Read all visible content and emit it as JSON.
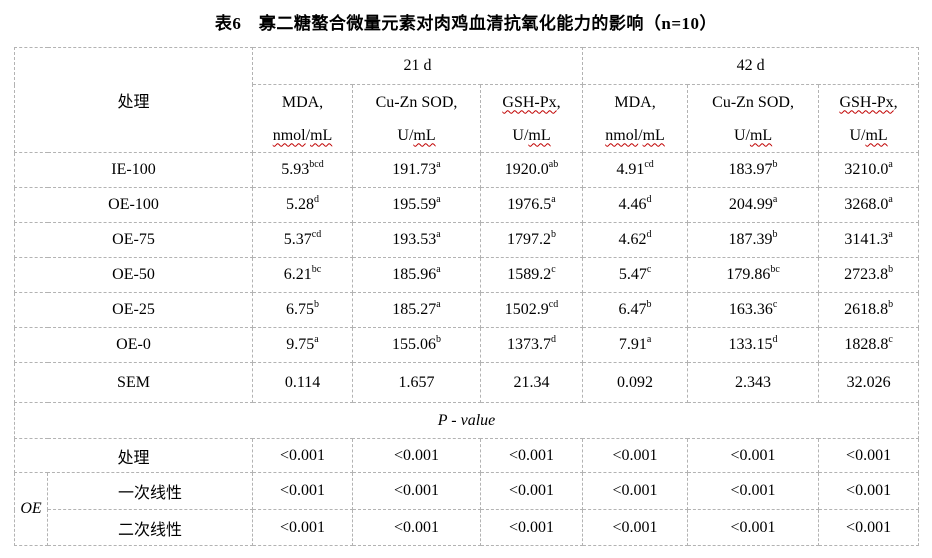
{
  "title": "表6　寡二糖螯合微量元素对肉鸡血清抗氧化能力的影响（n=10）",
  "colors": {
    "spellcheck_underline": "#c00000",
    "grid_line": "#b3b3b3",
    "solid_border": "#000000",
    "text": "#000000",
    "background": "#ffffff"
  },
  "table": {
    "corner_label": "处理",
    "group_headers": [
      "21 d",
      "42 d"
    ],
    "unit_columns": [
      {
        "line1": [
          [
            "MDA,",
            false
          ]
        ],
        "line2": [
          [
            "nmol",
            true
          ],
          [
            "/",
            false
          ],
          [
            "mL",
            true
          ]
        ]
      },
      {
        "line1": [
          [
            "Cu-Zn SOD,",
            false
          ]
        ],
        "line2": [
          [
            "U/",
            false
          ],
          [
            "mL",
            true
          ]
        ]
      },
      {
        "line1": [
          [
            "GSH-Px",
            true
          ],
          [
            ",",
            false
          ]
        ],
        "line2": [
          [
            "U/",
            false
          ],
          [
            "mL",
            true
          ]
        ]
      },
      {
        "line1": [
          [
            "MDA,",
            false
          ]
        ],
        "line2": [
          [
            "nmol",
            true
          ],
          [
            "/",
            false
          ],
          [
            "mL",
            true
          ]
        ]
      },
      {
        "line1": [
          [
            "Cu-Zn SOD,",
            false
          ]
        ],
        "line2": [
          [
            "U/",
            false
          ],
          [
            "mL",
            true
          ]
        ]
      },
      {
        "line1": [
          [
            "GSH-Px",
            true
          ],
          [
            ",",
            false
          ]
        ],
        "line2": [
          [
            "U/",
            false
          ],
          [
            "mL",
            true
          ]
        ]
      }
    ],
    "rows": [
      {
        "label": "IE-100",
        "cells": [
          {
            "v": "5.93",
            "sup": "bcd"
          },
          {
            "v": "191.73",
            "sup": "a"
          },
          {
            "v": "1920.0",
            "sup": "ab"
          },
          {
            "v": "4.91",
            "sup": "cd"
          },
          {
            "v": "183.97",
            "sup": "b"
          },
          {
            "v": "3210.0",
            "sup": "a"
          }
        ]
      },
      {
        "label": "OE-100",
        "cells": [
          {
            "v": "5.28",
            "sup": "d"
          },
          {
            "v": "195.59",
            "sup": "a"
          },
          {
            "v": "1976.5",
            "sup": "a"
          },
          {
            "v": "4.46",
            "sup": "d"
          },
          {
            "v": "204.99",
            "sup": "a"
          },
          {
            "v": "3268.0",
            "sup": "a"
          }
        ]
      },
      {
        "label": "OE-75",
        "cells": [
          {
            "v": "5.37",
            "sup": "cd"
          },
          {
            "v": "193.53",
            "sup": "a"
          },
          {
            "v": "1797.2",
            "sup": "b"
          },
          {
            "v": "4.62",
            "sup": "d"
          },
          {
            "v": "187.39",
            "sup": "b"
          },
          {
            "v": "3141.3",
            "sup": "a"
          }
        ]
      },
      {
        "label": "OE-50",
        "cells": [
          {
            "v": "6.21",
            "sup": "bc"
          },
          {
            "v": "185.96",
            "sup": "a"
          },
          {
            "v": "1589.2",
            "sup": "c"
          },
          {
            "v": "5.47",
            "sup": "c"
          },
          {
            "v": "179.86",
            "sup": "bc"
          },
          {
            "v": "2723.8",
            "sup": "b"
          }
        ]
      },
      {
        "label": "OE-25",
        "cells": [
          {
            "v": "6.75",
            "sup": "b"
          },
          {
            "v": "185.27",
            "sup": "a"
          },
          {
            "v": "1502.9",
            "sup": "cd"
          },
          {
            "v": "6.47",
            "sup": "b"
          },
          {
            "v": "163.36",
            "sup": "c"
          },
          {
            "v": "2618.8",
            "sup": "b"
          }
        ]
      },
      {
        "label": "OE-0",
        "cells": [
          {
            "v": "9.75",
            "sup": "a"
          },
          {
            "v": "155.06",
            "sup": "b"
          },
          {
            "v": "1373.7",
            "sup": "d"
          },
          {
            "v": "7.91",
            "sup": "a"
          },
          {
            "v": "133.15",
            "sup": "d"
          },
          {
            "v": "1828.8",
            "sup": "c"
          }
        ]
      }
    ],
    "sem_row": {
      "label": "SEM",
      "cells": [
        {
          "v": "0.114"
        },
        {
          "v": "1.657"
        },
        {
          "v": "21.34"
        },
        {
          "v": "0.092"
        },
        {
          "v": "2.343"
        },
        {
          "v": "32.026"
        }
      ]
    },
    "p_value_label": "P - value",
    "p_treatment_row": {
      "label": "处理",
      "cells": [
        {
          "v": "<0.001"
        },
        {
          "v": "<0.001"
        },
        {
          "v": "<0.001"
        },
        {
          "v": "<0.001"
        },
        {
          "v": "<0.001"
        },
        {
          "v": "<0.001"
        }
      ]
    },
    "oe_label": "OE",
    "oe_rows": [
      {
        "label": "一次线性",
        "cells": [
          {
            "v": "<0.001"
          },
          {
            "v": "<0.001"
          },
          {
            "v": "<0.001"
          },
          {
            "v": "<0.001"
          },
          {
            "v": "<0.001"
          },
          {
            "v": "<0.001"
          }
        ]
      },
      {
        "label": "二次线性",
        "cells": [
          {
            "v": "<0.001"
          },
          {
            "v": "<0.001"
          },
          {
            "v": "<0.001"
          },
          {
            "v": "<0.001"
          },
          {
            "v": "<0.001"
          },
          {
            "v": "<0.001"
          }
        ]
      }
    ]
  }
}
